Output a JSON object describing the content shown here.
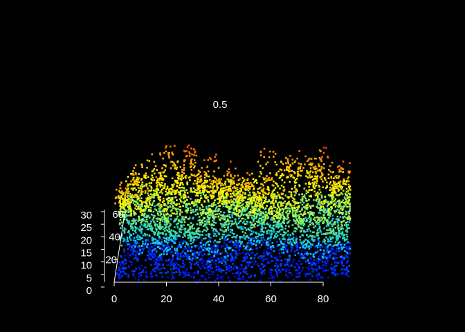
{
  "chart_data": {
    "type": "scatter",
    "subtype": "3d-point-cloud",
    "title": "0.5",
    "background": "#000000",
    "x_axis": {
      "range": [
        0,
        80
      ],
      "ticks": [
        "0",
        "20",
        "40",
        "60",
        "80"
      ]
    },
    "y_axis": {
      "range": [
        0,
        60
      ],
      "ticks": [
        "20",
        "40",
        "60"
      ]
    },
    "z_axis": {
      "range": [
        0,
        30
      ],
      "ticks": [
        "0",
        "5",
        "10",
        "15",
        "20",
        "25",
        "30"
      ]
    },
    "color_scale": {
      "variable": "z",
      "stops": [
        "#0000ff",
        "#00bfff",
        "#40e0a0",
        "#ffff00",
        "#ffa500",
        "#ff3000"
      ],
      "range": [
        0,
        30
      ]
    },
    "grid": false,
    "legend": "none"
  }
}
